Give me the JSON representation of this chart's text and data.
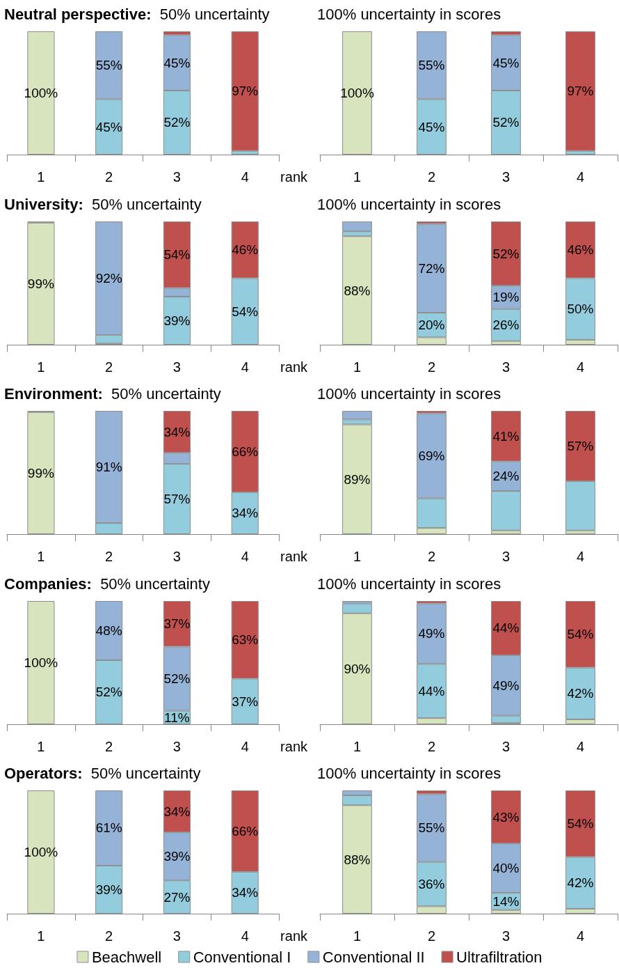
{
  "chart_data": [
    {
      "type": "bar",
      "title": "Neutral perspective:  50% uncertainty",
      "categories": [
        "1",
        "2",
        "3",
        "4"
      ],
      "xlabel": "rank",
      "stacked": true,
      "ylim": [
        0,
        100
      ],
      "tick_labels": "x",
      "series": [
        {
          "color": "#d7e4bd",
          "values": [
            100,
            0,
            0,
            0
          ],
          "value_labels": [
            "100%",
            null,
            null,
            null
          ]
        },
        {
          "color": "#93cddd",
          "values": [
            0,
            45,
            52,
            3
          ],
          "value_labels": [
            null,
            "45%",
            "52%",
            null
          ]
        },
        {
          "color": "#95b3d7",
          "values": [
            0,
            55,
            45,
            0
          ],
          "value_labels": [
            null,
            "55%",
            "45%",
            null
          ]
        },
        {
          "color": "#c0504d",
          "values": [
            0,
            0,
            3,
            97
          ],
          "value_labels": [
            null,
            null,
            null,
            "97%"
          ]
        }
      ]
    },
    {
      "type": "bar",
      "title": "100% uncertainty in scores",
      "categories": [
        "1",
        "2",
        "3",
        "4"
      ],
      "stacked": true,
      "ylim": [
        0,
        100
      ],
      "tick_labels": "x",
      "series": [
        {
          "color": "#d7e4bd",
          "values": [
            100,
            0,
            0,
            0
          ],
          "value_labels": [
            "100%",
            null,
            null,
            null
          ]
        },
        {
          "color": "#93cddd",
          "values": [
            0,
            45,
            52,
            3
          ],
          "value_labels": [
            null,
            "45%",
            "52%",
            null
          ]
        },
        {
          "color": "#95b3d7",
          "values": [
            0,
            55,
            45,
            0
          ],
          "value_labels": [
            null,
            "55%",
            "45%",
            null
          ]
        },
        {
          "color": "#c0504d",
          "values": [
            0,
            0,
            3,
            97
          ],
          "value_labels": [
            null,
            null,
            null,
            "97%"
          ]
        }
      ]
    },
    {
      "type": "bar",
      "title": "University:  50% uncertainty",
      "categories": [
        "1",
        "2",
        "3",
        "4"
      ],
      "xlabel": "rank",
      "stacked": true,
      "ylim": [
        0,
        100
      ],
      "tick_labels": "x",
      "series": [
        {
          "color": "#d7e4bd",
          "values": [
            99,
            1,
            0,
            0
          ],
          "value_labels": [
            "99%",
            null,
            null,
            null
          ]
        },
        {
          "color": "#93cddd",
          "values": [
            0,
            7,
            39,
            54
          ],
          "value_labels": [
            null,
            null,
            "39%",
            "54%"
          ]
        },
        {
          "color": "#95b3d7",
          "values": [
            1,
            92,
            7,
            0
          ],
          "value_labels": [
            null,
            "92%",
            null,
            null
          ]
        },
        {
          "color": "#c0504d",
          "values": [
            0,
            0,
            54,
            46
          ],
          "value_labels": [
            null,
            null,
            "54%",
            "46%"
          ]
        }
      ]
    },
    {
      "type": "bar",
      "title": "100% uncertainty in scores",
      "categories": [
        "1",
        "2",
        "3",
        "4"
      ],
      "stacked": true,
      "ylim": [
        0,
        100
      ],
      "tick_labels": "x",
      "series": [
        {
          "color": "#d7e4bd",
          "values": [
            88,
            6,
            3,
            4
          ],
          "value_labels": [
            "88%",
            null,
            null,
            null
          ]
        },
        {
          "color": "#93cddd",
          "values": [
            4,
            20,
            26,
            50
          ],
          "value_labels": [
            null,
            "20%",
            "26%",
            "50%"
          ]
        },
        {
          "color": "#95b3d7",
          "values": [
            8,
            72,
            19,
            0
          ],
          "value_labels": [
            null,
            "72%",
            "19%",
            null
          ]
        },
        {
          "color": "#c0504d",
          "values": [
            0,
            2,
            52,
            46
          ],
          "value_labels": [
            null,
            null,
            "52%",
            "46%"
          ]
        }
      ]
    },
    {
      "type": "bar",
      "title": "Environment:  50% uncertainty",
      "categories": [
        "1",
        "2",
        "3",
        "4"
      ],
      "xlabel": "rank",
      "stacked": true,
      "ylim": [
        0,
        100
      ],
      "tick_labels": "x",
      "series": [
        {
          "color": "#d7e4bd",
          "values": [
            99,
            0,
            0,
            0
          ],
          "value_labels": [
            "99%",
            null,
            null,
            null
          ]
        },
        {
          "color": "#93cddd",
          "values": [
            0,
            9,
            57,
            34
          ],
          "value_labels": [
            null,
            null,
            "57%",
            "34%"
          ]
        },
        {
          "color": "#95b3d7",
          "values": [
            1,
            91,
            9,
            0
          ],
          "value_labels": [
            null,
            "91%",
            null,
            null
          ]
        },
        {
          "color": "#c0504d",
          "values": [
            0,
            0,
            34,
            66
          ],
          "value_labels": [
            null,
            null,
            "34%",
            "66%"
          ]
        }
      ]
    },
    {
      "type": "bar",
      "title": "100% uncertainty in scores",
      "categories": [
        "1",
        "2",
        "3",
        "4"
      ],
      "stacked": true,
      "ylim": [
        0,
        100
      ],
      "tick_labels": "x",
      "series": [
        {
          "color": "#d7e4bd",
          "values": [
            89,
            5,
            3,
            3
          ],
          "value_labels": [
            "89%",
            null,
            null,
            null
          ]
        },
        {
          "color": "#93cddd",
          "values": [
            4,
            24,
            32,
            40
          ]
        },
        {
          "color": "#95b3d7",
          "values": [
            7,
            69,
            24,
            0
          ],
          "value_labels": [
            null,
            "69%",
            "24%",
            null
          ]
        },
        {
          "color": "#c0504d",
          "values": [
            0,
            2,
            41,
            57
          ],
          "value_labels": [
            null,
            null,
            "41%",
            "57%"
          ]
        }
      ]
    },
    {
      "type": "bar",
      "title": "Companies:  50% uncertainty",
      "categories": [
        "1",
        "2",
        "3",
        "4"
      ],
      "xlabel": "rank",
      "stacked": true,
      "ylim": [
        0,
        100
      ],
      "tick_labels": "x",
      "series": [
        {
          "color": "#d7e4bd",
          "values": [
            100,
            0,
            0,
            0
          ],
          "value_labels": [
            "100%",
            null,
            null,
            null
          ]
        },
        {
          "color": "#93cddd",
          "values": [
            0,
            52,
            11,
            37
          ],
          "value_labels": [
            null,
            "52%",
            "11%",
            "37%"
          ]
        },
        {
          "color": "#95b3d7",
          "values": [
            0,
            48,
            52,
            0
          ],
          "value_labels": [
            null,
            "48%",
            "52%",
            null
          ]
        },
        {
          "color": "#c0504d",
          "values": [
            0,
            0,
            37,
            63
          ],
          "value_labels": [
            null,
            null,
            "37%",
            "63%"
          ]
        }
      ]
    },
    {
      "type": "bar",
      "title": "100% uncertainty in scores",
      "categories": [
        "1",
        "2",
        "3",
        "4"
      ],
      "stacked": true,
      "ylim": [
        0,
        100
      ],
      "tick_labels": "x",
      "series": [
        {
          "color": "#d7e4bd",
          "values": [
            90,
            5,
            1,
            4
          ],
          "value_labels": [
            "90%",
            null,
            null,
            null
          ]
        },
        {
          "color": "#93cddd",
          "values": [
            8,
            44,
            6,
            42
          ],
          "value_labels": [
            null,
            "44%",
            null,
            "42%"
          ]
        },
        {
          "color": "#95b3d7",
          "values": [
            2,
            49,
            49,
            0
          ],
          "value_labels": [
            null,
            "49%",
            "49%",
            null
          ]
        },
        {
          "color": "#c0504d",
          "values": [
            0,
            2,
            44,
            54
          ],
          "value_labels": [
            null,
            null,
            "44%",
            "54%"
          ]
        }
      ]
    },
    {
      "type": "bar",
      "title": "Operators:  50% uncertainty",
      "categories": [
        "1",
        "2",
        "3",
        "4"
      ],
      "xlabel": "rank",
      "stacked": true,
      "ylim": [
        0,
        100
      ],
      "tick_labels": "x",
      "series": [
        {
          "color": "#d7e4bd",
          "values": [
            100,
            0,
            0,
            0
          ],
          "value_labels": [
            "100%",
            null,
            null,
            null
          ]
        },
        {
          "color": "#93cddd",
          "values": [
            0,
            39,
            27,
            34
          ],
          "value_labels": [
            null,
            "39%",
            "27%",
            "34%"
          ]
        },
        {
          "color": "#95b3d7",
          "values": [
            0,
            61,
            39,
            0
          ],
          "value_labels": [
            null,
            "61%",
            "39%",
            null
          ]
        },
        {
          "color": "#c0504d",
          "values": [
            0,
            0,
            34,
            66
          ],
          "value_labels": [
            null,
            null,
            "34%",
            "66%"
          ]
        }
      ]
    },
    {
      "type": "bar",
      "title": "100% uncertainty in scores",
      "categories": [
        "1",
        "2",
        "3",
        "4"
      ],
      "stacked": true,
      "ylim": [
        0,
        100
      ],
      "tick_labels": "x",
      "legend": "bottom",
      "series": [
        {
          "name": "Beachwell",
          "color": "#d7e4bd",
          "values": [
            88,
            6,
            3,
            4
          ],
          "value_labels": [
            "88%",
            null,
            null,
            null
          ]
        },
        {
          "name": "Conventional I",
          "color": "#93cddd",
          "values": [
            8,
            36,
            14,
            42
          ],
          "value_labels": [
            null,
            "36%",
            "14%",
            "42%"
          ]
        },
        {
          "name": "Conventional II",
          "color": "#95b3d7",
          "values": [
            4,
            55,
            40,
            0
          ],
          "value_labels": [
            null,
            "55%",
            "40%",
            null
          ]
        },
        {
          "name": "Ultrafiltration",
          "color": "#c0504d",
          "values": [
            0,
            3,
            43,
            54
          ],
          "value_labels": [
            null,
            null,
            "43%",
            "54%"
          ]
        }
      ]
    }
  ]
}
